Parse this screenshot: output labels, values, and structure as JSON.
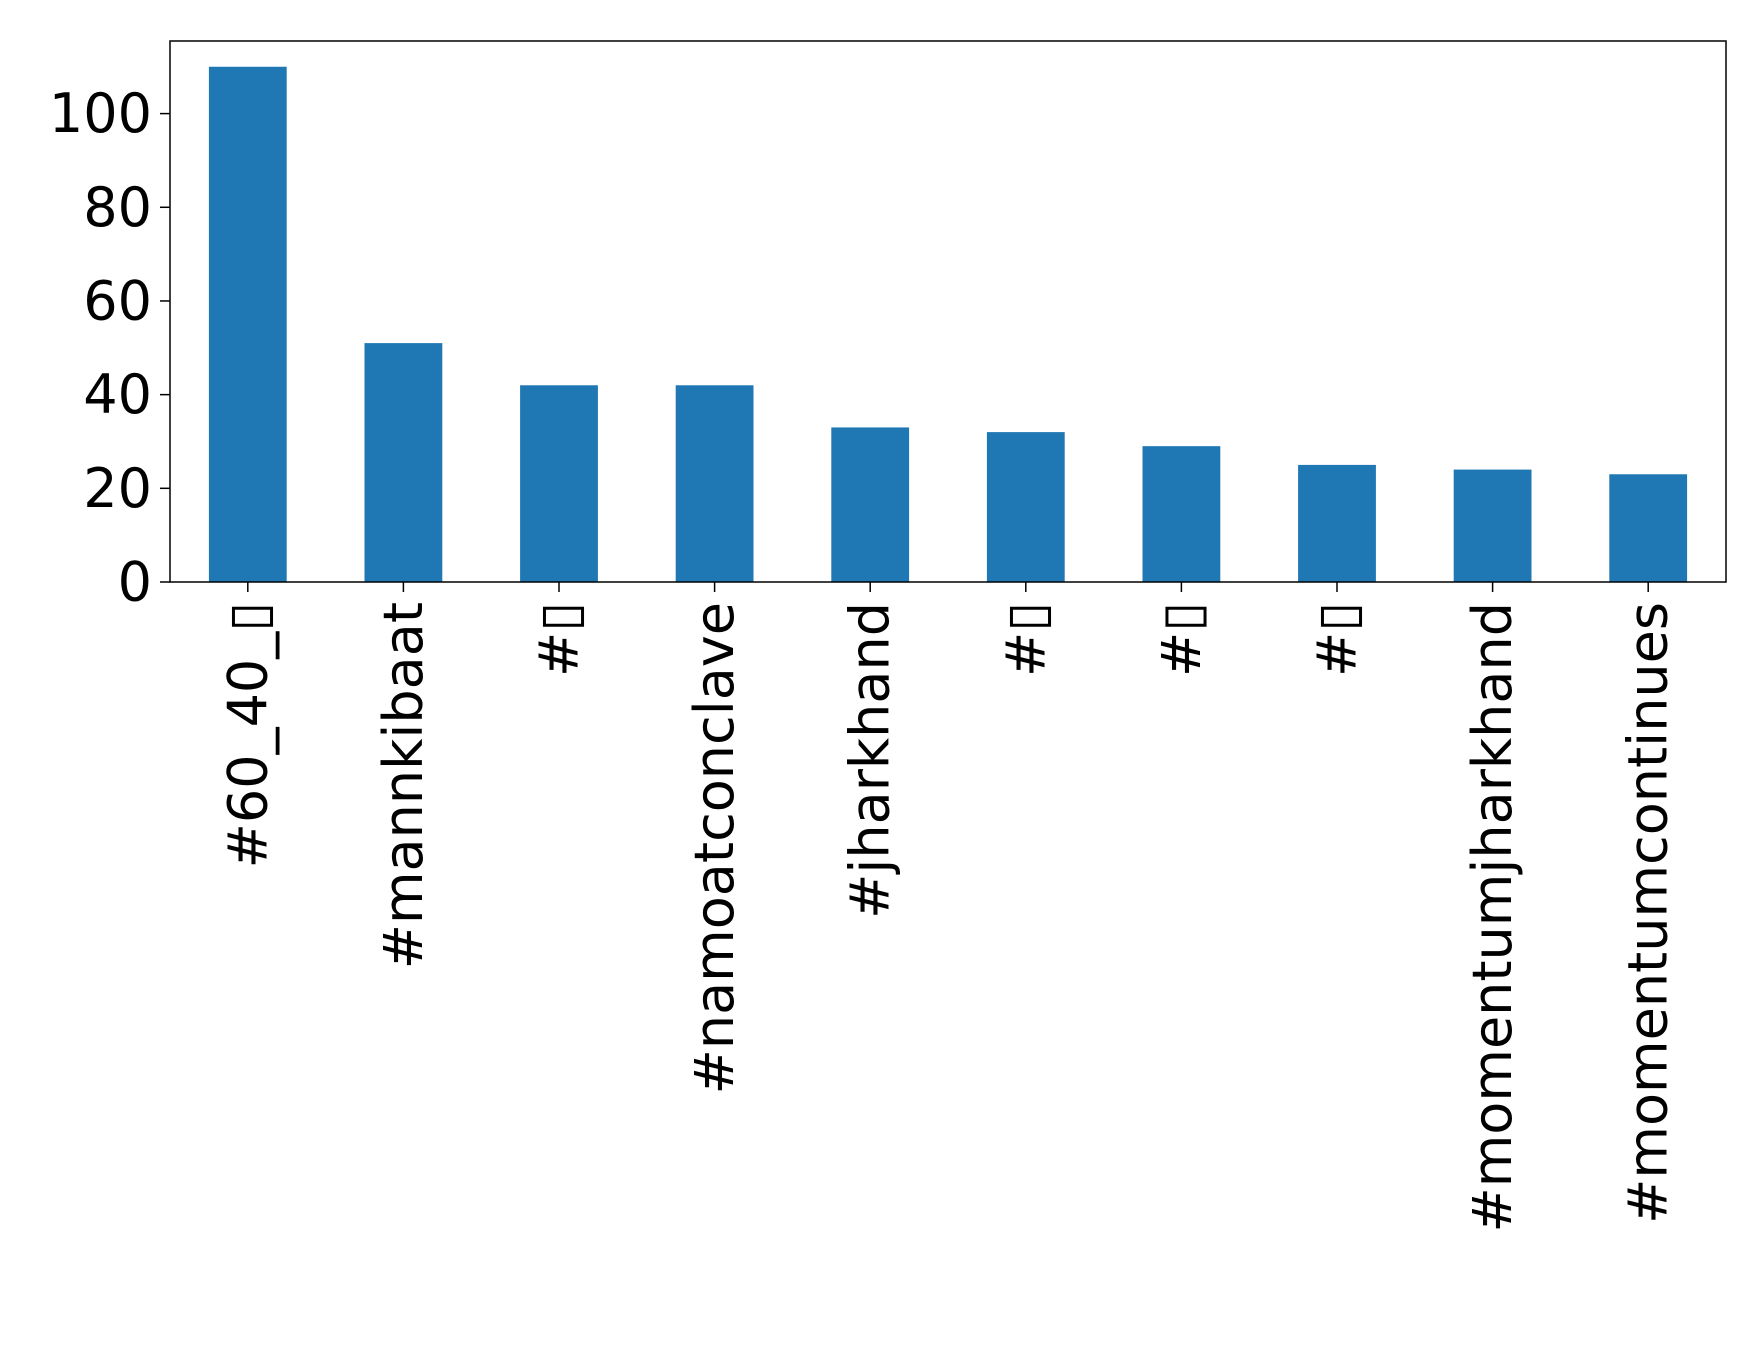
{
  "chart_data": {
    "type": "bar",
    "categories": [
      "#60_40_▯",
      "#mannkibaat",
      "#▯",
      "#namoatconclave",
      "#jharkhand",
      "#▯",
      "#▯",
      "#▯",
      "#momentumjharkhand",
      "#momentumcontinues"
    ],
    "values": [
      110,
      51,
      42,
      42,
      33,
      32,
      29,
      25,
      24,
      23
    ],
    "title": "",
    "xlabel": "",
    "ylabel": "",
    "ylim": [
      0,
      115.5
    ],
    "yticks": [
      0,
      20,
      40,
      60,
      80,
      100
    ],
    "grid": false,
    "legend": "none",
    "bar_color": "#1f77b4"
  }
}
